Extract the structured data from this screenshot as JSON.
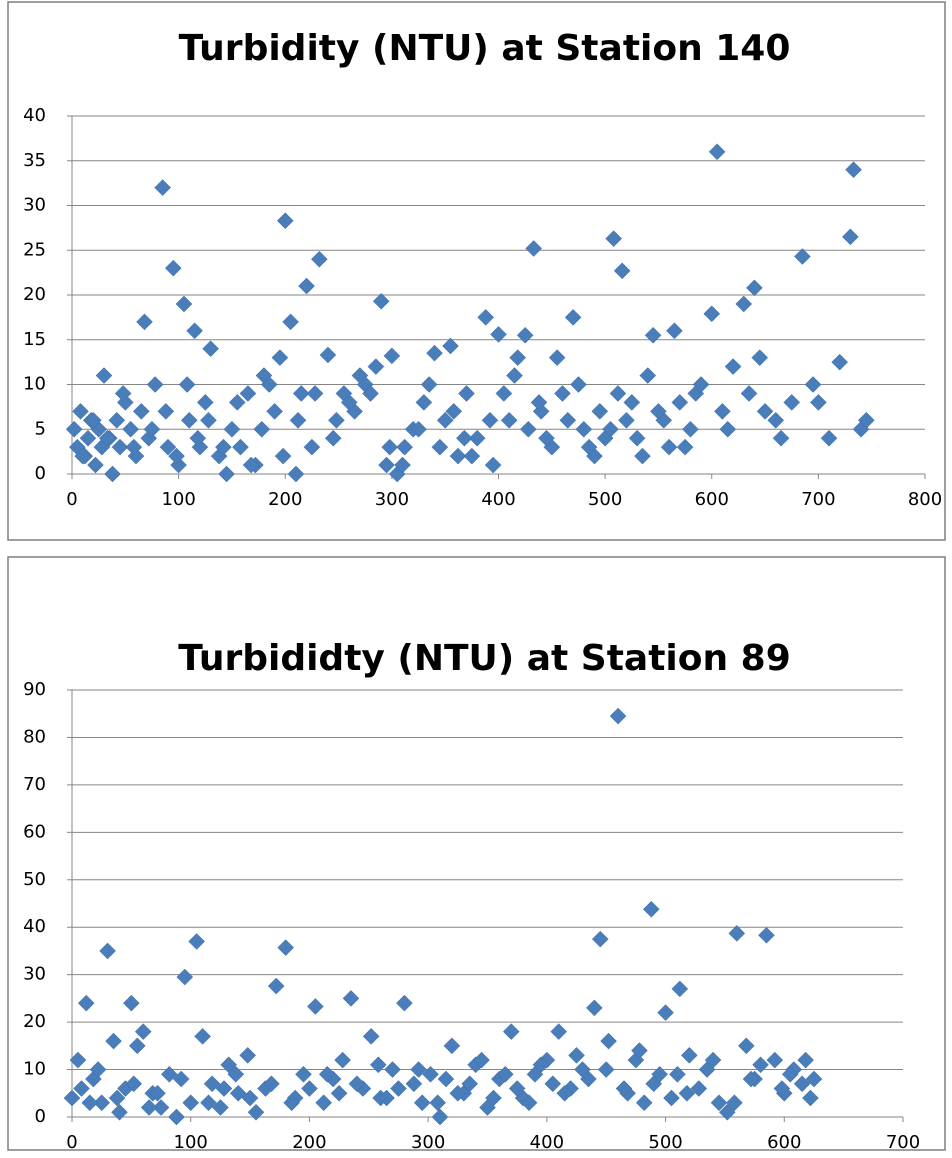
{
  "chart_data": [
    {
      "type": "scatter",
      "title": "Turbidity (NTU) at Station 140",
      "color": "#4a7ebb",
      "marker": "diamond",
      "grid": true,
      "xlim": [
        0,
        800
      ],
      "xticks": [
        0,
        100,
        200,
        300,
        400,
        500,
        600,
        700,
        800
      ],
      "ylim": [
        0,
        40
      ],
      "yticks": [
        0,
        5,
        10,
        15,
        20,
        25,
        30,
        35,
        40
      ],
      "x": [
        2,
        5,
        8,
        12,
        15,
        18,
        22,
        25,
        28,
        30,
        35,
        38,
        42,
        45,
        50,
        55,
        60,
        65,
        68,
        72,
        78,
        85,
        90,
        95,
        100,
        105,
        110,
        115,
        120,
        125,
        130,
        138,
        145,
        150,
        158,
        165,
        172,
        180,
        190,
        195,
        200,
        205,
        210,
        215,
        220,
        225,
        232,
        240,
        248,
        255,
        265,
        275,
        285,
        290,
        295,
        300,
        305,
        312,
        320,
        330,
        340,
        350,
        355,
        362,
        370,
        380,
        388,
        395,
        400,
        410,
        418,
        425,
        433,
        440,
        450,
        460,
        470,
        480,
        490,
        500,
        508,
        516,
        525,
        535,
        545,
        555,
        565,
        575,
        585,
        600,
        605,
        615,
        630,
        640,
        650,
        665,
        685,
        700,
        730,
        733,
        10,
        20,
        33,
        48,
        58,
        75,
        88,
        98,
        108,
        118,
        128,
        142,
        155,
        168,
        178,
        185,
        198,
        212,
        228,
        245,
        260,
        270,
        280,
        298,
        310,
        325,
        335,
        345,
        358,
        368,
        375,
        392,
        405,
        415,
        428,
        438,
        445,
        455,
        465,
        475,
        485,
        495,
        505,
        512,
        520,
        530,
        540,
        550,
        560,
        570,
        580,
        590,
        610,
        620,
        635,
        645,
        660,
        675,
        695,
        710,
        720,
        740,
        745
      ],
      "y": [
        5,
        3,
        7,
        2,
        4,
        6,
        1,
        5,
        3,
        11,
        4,
        0,
        6,
        3,
        8,
        5,
        2,
        7,
        17,
        4,
        10,
        32,
        3,
        23,
        1,
        19,
        6,
        16,
        3,
        8,
        14,
        2,
        0,
        5,
        3,
        9,
        1,
        11,
        7,
        13,
        28.3,
        17,
        0,
        9,
        21,
        3,
        24,
        13.3,
        6,
        9,
        7,
        10,
        12,
        19.3,
        1,
        13.2,
        0,
        3,
        5,
        8,
        13.5,
        6,
        14.3,
        2,
        9,
        4,
        17.5,
        1,
        15.6,
        6,
        13,
        15.5,
        25.2,
        7,
        3,
        9,
        17.5,
        5,
        2,
        4,
        26.3,
        22.7,
        8,
        2,
        15.5,
        6,
        16,
        3,
        9,
        17.9,
        36,
        5,
        19,
        20.8,
        7,
        4,
        24.3,
        8,
        26.5,
        34,
        2,
        6,
        4,
        9,
        3,
        5,
        7,
        2,
        10,
        4,
        6,
        3,
        8,
        1,
        5,
        10,
        2,
        6,
        9,
        4,
        8,
        11,
        9,
        3,
        1,
        5,
        10,
        3,
        7,
        4,
        2,
        6,
        9,
        11,
        5,
        8,
        4,
        13,
        6,
        10,
        3,
        7,
        5,
        9,
        6,
        4,
        11,
        7,
        3,
        8,
        5,
        10,
        7,
        12,
        9,
        13,
        6,
        8,
        10,
        4,
        12.5,
        5,
        6
      ]
    },
    {
      "type": "scatter",
      "title": "Turbididty (NTU) at Station 89",
      "color": "#4a7ebb",
      "marker": "diamond",
      "grid": true,
      "xlim": [
        0,
        700
      ],
      "xticks": [
        0,
        100,
        200,
        300,
        400,
        500,
        600,
        700
      ],
      "ylim": [
        0,
        90
      ],
      "yticks": [
        0,
        10,
        20,
        30,
        40,
        50,
        60,
        70,
        80,
        90
      ],
      "x": [
        0,
        5,
        12,
        18,
        25,
        30,
        35,
        40,
        45,
        50,
        55,
        60,
        68,
        75,
        82,
        88,
        95,
        100,
        105,
        110,
        118,
        125,
        132,
        140,
        148,
        155,
        163,
        172,
        180,
        188,
        195,
        205,
        212,
        220,
        228,
        235,
        245,
        252,
        260,
        270,
        280,
        288,
        295,
        302,
        310,
        320,
        330,
        340,
        350,
        360,
        370,
        380,
        390,
        400,
        410,
        420,
        430,
        440,
        445,
        452,
        460,
        468,
        475,
        482,
        488,
        495,
        500,
        505,
        512,
        520,
        528,
        535,
        545,
        552,
        560,
        568,
        575,
        585,
        592,
        600,
        608,
        615,
        622,
        8,
        15,
        22,
        38,
        52,
        65,
        72,
        92,
        115,
        128,
        138,
        150,
        168,
        185,
        200,
        215,
        225,
        240,
        258,
        265,
        275,
        292,
        308,
        315,
        325,
        335,
        345,
        355,
        365,
        375,
        385,
        395,
        405,
        415,
        425,
        435,
        450,
        465,
        478,
        490,
        510,
        518,
        540,
        558,
        572,
        580,
        598,
        605,
        618,
        625
      ],
      "y": [
        4,
        12,
        24,
        8,
        3,
        35,
        16,
        1,
        6,
        24,
        15,
        18,
        5,
        2,
        9,
        0,
        29.5,
        3,
        37,
        17,
        7,
        2,
        11,
        5,
        13,
        1,
        6,
        27.6,
        35.7,
        4,
        9,
        23.3,
        3,
        8,
        12,
        25,
        6,
        17,
        4,
        10,
        24,
        7,
        3,
        9,
        0,
        15,
        5,
        11,
        2,
        8,
        18,
        4,
        9,
        12,
        18,
        6,
        10,
        23,
        37.5,
        16,
        84.5,
        5,
        12,
        3,
        43.8,
        9,
        22,
        4,
        27,
        13,
        6,
        10,
        3,
        1,
        38.7,
        15,
        8,
        38.3,
        12,
        5,
        10,
        7,
        4,
        6,
        3,
        10,
        4,
        7,
        2,
        5,
        8,
        3,
        6,
        9,
        4,
        7,
        3,
        6,
        9,
        5,
        7,
        11,
        4,
        6,
        10,
        3,
        8,
        5,
        7,
        12,
        4,
        9,
        6,
        3,
        11,
        7,
        5,
        13,
        8,
        10,
        6,
        14,
        7,
        9,
        5,
        12,
        3,
        8,
        11,
        6,
        9,
        12,
        8
      ]
    }
  ]
}
